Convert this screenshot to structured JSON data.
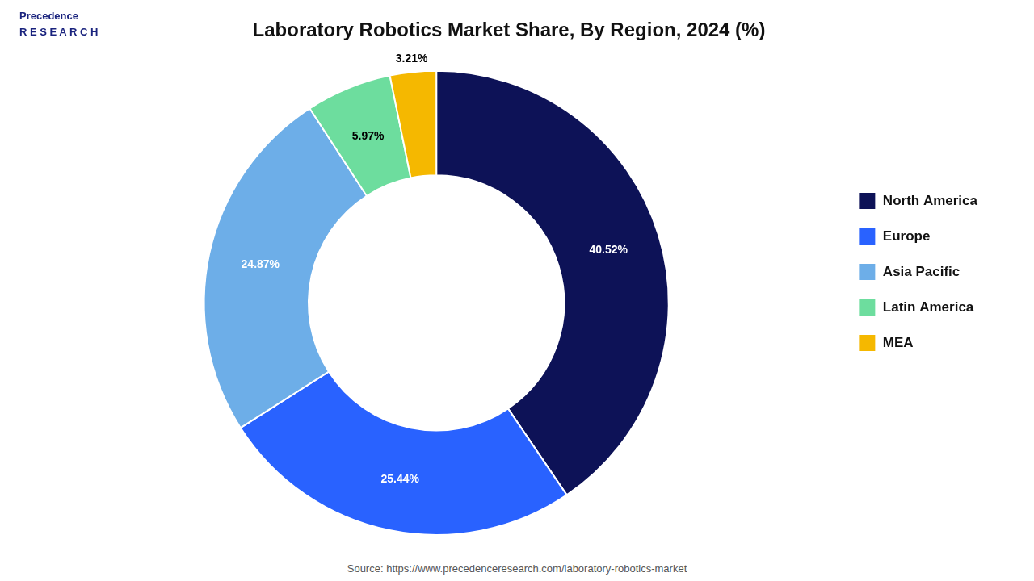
{
  "chart_data": {
    "type": "doughnut",
    "title": "Laboratory Robotics Market Share, By Region, 2024 (%)",
    "categories": [
      "North America",
      "Europe",
      "Asia Pacific",
      "Latin America",
      "MEA"
    ],
    "values": [
      40.52,
      25.44,
      24.87,
      5.97,
      3.21
    ],
    "value_labels": [
      "40.52%",
      "25.44%",
      "24.87%",
      "5.97%",
      "3.21%"
    ],
    "colors": [
      "#0d1257",
      "#2962ff",
      "#6daee8",
      "#6ddd9e",
      "#f5b800"
    ],
    "data_labels": true,
    "legend": "right",
    "annotations": [
      "Precedence\nR E S E A R C H",
      "Source: https://www.precedenceresearch.com/laboratory-robotics-market"
    ]
  }
}
